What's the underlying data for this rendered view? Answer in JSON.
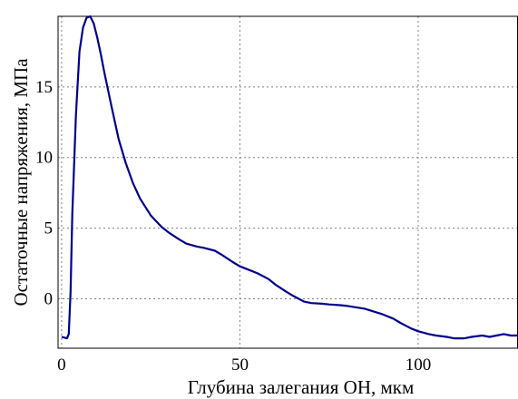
{
  "chart_data": {
    "type": "line",
    "title": "",
    "xlabel": "Глубина залегания ОН, мкм",
    "ylabel": "Остаточные напряжения, МПа",
    "xlim": [
      -1,
      128
    ],
    "ylim": [
      -3.5,
      20
    ],
    "grid": true,
    "x_ticks": [
      0,
      50,
      100
    ],
    "y_ticks": [
      0,
      5,
      10,
      15
    ],
    "line_color": "#00008b",
    "series": [
      {
        "x": [
          0,
          1.5,
          2,
          2.5,
          3,
          4,
          5,
          6,
          7,
          8,
          9,
          10,
          11,
          12,
          14,
          16,
          18,
          20,
          22,
          25,
          28,
          30,
          33,
          35,
          38,
          40,
          43,
          45,
          48,
          50,
          53,
          55,
          58,
          60,
          63,
          65,
          68,
          70,
          73,
          75,
          78,
          80,
          85,
          90,
          93,
          95,
          98,
          100,
          103,
          105,
          108,
          110,
          113,
          115,
          118,
          120,
          122,
          124,
          126,
          128
        ],
        "y": [
          -2.7,
          -2.8,
          -2.5,
          0.5,
          6.0,
          13.0,
          17.5,
          19.2,
          19.9,
          20.0,
          19.5,
          18.5,
          17.3,
          16.0,
          13.6,
          11.3,
          9.6,
          8.2,
          7.1,
          5.9,
          5.1,
          4.7,
          4.2,
          3.9,
          3.7,
          3.6,
          3.4,
          3.1,
          2.6,
          2.3,
          2.0,
          1.8,
          1.4,
          1.0,
          0.5,
          0.2,
          -0.2,
          -0.3,
          -0.35,
          -0.4,
          -0.45,
          -0.5,
          -0.7,
          -1.1,
          -1.4,
          -1.7,
          -2.1,
          -2.3,
          -2.5,
          -2.6,
          -2.7,
          -2.8,
          -2.8,
          -2.7,
          -2.6,
          -2.7,
          -2.6,
          -2.5,
          -2.6,
          -2.6
        ]
      }
    ]
  }
}
